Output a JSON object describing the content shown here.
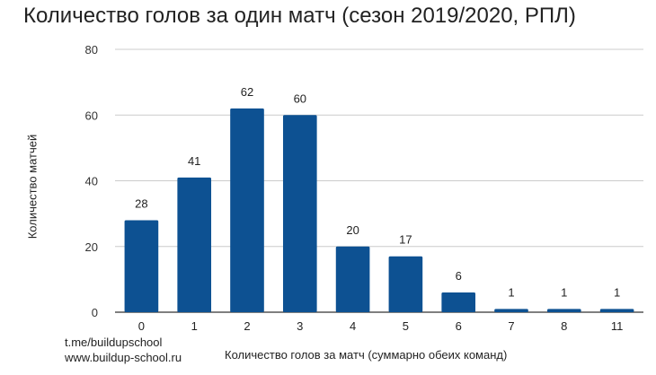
{
  "chart_data": {
    "type": "bar",
    "title": "Количество голов за один матч (сезон 2019/2020, РПЛ)",
    "xlabel": "Количество голов за матч (суммарно обеих команд)",
    "ylabel": "Количество матчей",
    "categories": [
      "0",
      "1",
      "2",
      "3",
      "4",
      "5",
      "6",
      "7",
      "8",
      "11"
    ],
    "values": [
      28,
      41,
      62,
      60,
      20,
      17,
      6,
      1,
      1,
      1
    ],
    "data_labels": [
      "28",
      "41",
      "62",
      "60",
      "20",
      "17",
      "6",
      "1",
      "1",
      "1"
    ],
    "ylim": [
      0,
      80
    ],
    "yticks": [
      "0",
      "20",
      "40",
      "60",
      "80"
    ],
    "bar_color": "#0d5192",
    "grid": true,
    "legend": "none"
  },
  "credits": [
    "t.me/buildupschool",
    "www.buildup-school.ru"
  ]
}
